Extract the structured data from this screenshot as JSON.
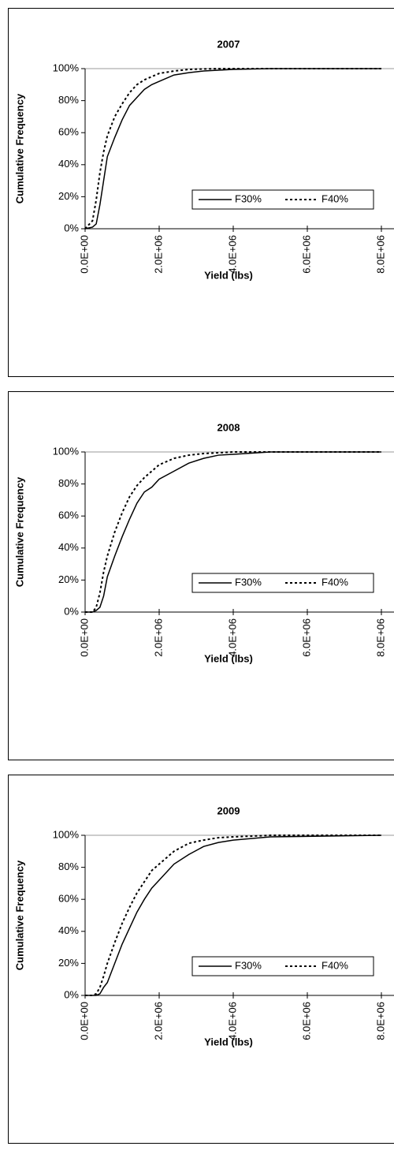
{
  "chart_data": [
    {
      "type": "line",
      "title": "2007",
      "y_label": "Cumulative Frequency",
      "x_label": "Yield (lbs)",
      "x": [
        0,
        200000,
        300000,
        400000,
        500000,
        600000,
        800000,
        1000000,
        1200000,
        1400000,
        1600000,
        1800000,
        2000000,
        2400000,
        2800000,
        3200000,
        3600000,
        4000000,
        5000000,
        8000000
      ],
      "series": [
        {
          "name": "F30%",
          "color": "#000000",
          "dash": "solid",
          "values": [
            0,
            1,
            3,
            15,
            30,
            45,
            57,
            68,
            77,
            82,
            87,
            90,
            92,
            96,
            97.5,
            98.5,
            99,
            99.5,
            100,
            100
          ]
        },
        {
          "name": "F40%",
          "color": "#000000",
          "dash": "dotted",
          "values": [
            0,
            5,
            18,
            35,
            48,
            58,
            70,
            78,
            85,
            90,
            93,
            95,
            97,
            98.5,
            99.5,
            99.8,
            100,
            100,
            100,
            100
          ]
        }
      ],
      "xlim": [
        0,
        8000000
      ],
      "xticks": [
        {
          "value": 0,
          "label": "0.0E+00"
        },
        {
          "value": 2000000,
          "label": "2.0E+06"
        },
        {
          "value": 4000000,
          "label": "4.0E+06"
        },
        {
          "value": 6000000,
          "label": "6.0E+06"
        },
        {
          "value": 8000000,
          "label": "8.0E+06"
        }
      ],
      "ylim": [
        0,
        100
      ],
      "yticks": [
        {
          "value": 0,
          "label": "0%"
        },
        {
          "value": 20,
          "label": "20%"
        },
        {
          "value": 40,
          "label": "40%"
        },
        {
          "value": 60,
          "label": "60%"
        },
        {
          "value": 80,
          "label": "80%"
        },
        {
          "value": 100,
          "label": "100%"
        }
      ],
      "grid": false
    },
    {
      "type": "line",
      "title": "2008",
      "y_label": "Cumulative Frequency",
      "x_label": "Yield (lbs)",
      "x": [
        0,
        200000,
        300000,
        400000,
        500000,
        600000,
        800000,
        1000000,
        1200000,
        1400000,
        1600000,
        1800000,
        2000000,
        2400000,
        2800000,
        3200000,
        3600000,
        4000000,
        5000000,
        8000000
      ],
      "series": [
        {
          "name": "F30%",
          "color": "#000000",
          "dash": "solid",
          "values": [
            0,
            0,
            1,
            3,
            10,
            22,
            35,
            47,
            58,
            68,
            75,
            78,
            83,
            88,
            93,
            96,
            98,
            98.5,
            100,
            100
          ]
        },
        {
          "name": "F40%",
          "color": "#000000",
          "dash": "dotted",
          "values": [
            0,
            0,
            3,
            12,
            25,
            35,
            50,
            62,
            72,
            79,
            84,
            88,
            92,
            96,
            98,
            99,
            99.5,
            100,
            100,
            100
          ]
        }
      ],
      "xlim": [
        0,
        8000000
      ],
      "xticks": [
        {
          "value": 0,
          "label": "0.0E+00"
        },
        {
          "value": 2000000,
          "label": "2.0E+06"
        },
        {
          "value": 4000000,
          "label": "4.0E+06"
        },
        {
          "value": 6000000,
          "label": "6.0E+06"
        },
        {
          "value": 8000000,
          "label": "8.0E+06"
        }
      ],
      "ylim": [
        0,
        100
      ],
      "yticks": [
        {
          "value": 0,
          "label": "0%"
        },
        {
          "value": 20,
          "label": "20%"
        },
        {
          "value": 40,
          "label": "40%"
        },
        {
          "value": 60,
          "label": "60%"
        },
        {
          "value": 80,
          "label": "80%"
        },
        {
          "value": 100,
          "label": "100%"
        }
      ],
      "grid": false
    },
    {
      "type": "line",
      "title": "2009",
      "y_label": "Cumulative Frequency",
      "x_label": "Yield (lbs)",
      "x": [
        0,
        200000,
        300000,
        400000,
        500000,
        600000,
        800000,
        1000000,
        1200000,
        1400000,
        1600000,
        1800000,
        2000000,
        2400000,
        2800000,
        3200000,
        3600000,
        4000000,
        5000000,
        8000000
      ],
      "series": [
        {
          "name": "F30%",
          "color": "#000000",
          "dash": "solid",
          "values": [
            0,
            0,
            0,
            1,
            5,
            8,
            20,
            32,
            42,
            52,
            60,
            67,
            72,
            82,
            88,
            93,
            95.5,
            97,
            99,
            100
          ]
        },
        {
          "name": "F40%",
          "color": "#000000",
          "dash": "dotted",
          "values": [
            0,
            0,
            1,
            5,
            12,
            20,
            33,
            45,
            55,
            64,
            71,
            78,
            82,
            90,
            95,
            97,
            98.5,
            99,
            100,
            100
          ]
        }
      ],
      "xlim": [
        0,
        8000000
      ],
      "xticks": [
        {
          "value": 0,
          "label": "0.0E+00"
        },
        {
          "value": 2000000,
          "label": "2.0E+06"
        },
        {
          "value": 4000000,
          "label": "4.0E+06"
        },
        {
          "value": 6000000,
          "label": "6.0E+06"
        },
        {
          "value": 8000000,
          "label": "8.0E+06"
        }
      ],
      "ylim": [
        0,
        100
      ],
      "yticks": [
        {
          "value": 0,
          "label": "0%"
        },
        {
          "value": 20,
          "label": "20%"
        },
        {
          "value": 40,
          "label": "40%"
        },
        {
          "value": 60,
          "label": "60%"
        },
        {
          "value": 80,
          "label": "80%"
        },
        {
          "value": 100,
          "label": "100%"
        }
      ],
      "grid": false
    }
  ]
}
